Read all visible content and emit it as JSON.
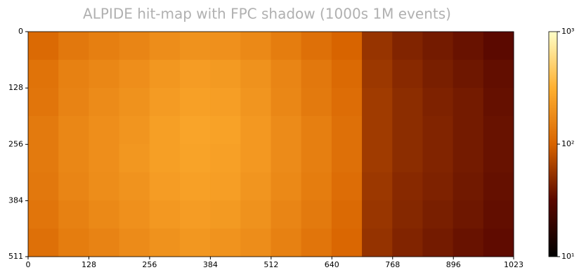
{
  "chart_data": {
    "type": "heatmap",
    "title": "ALPIDE hit-map with FPC shadow (1000s 1M events)",
    "xlim": [
      0,
      1023
    ],
    "xticks": [
      0,
      128,
      256,
      384,
      512,
      640,
      768,
      896,
      1023
    ],
    "ylim": [
      0,
      511
    ],
    "yticks": [
      0,
      128,
      256,
      384,
      511
    ],
    "clim": [
      10,
      1000
    ],
    "color_log_scale": true,
    "colorbar_ticks": [
      {
        "value": 1000,
        "label": "10³"
      },
      {
        "value": 100,
        "label": "10²"
      },
      {
        "value": 10,
        "label": "10¹"
      }
    ],
    "colormap": [
      "#000000",
      "#5a0800",
      "#d86400",
      "#ffb030",
      "#ffffc8"
    ],
    "z": [
      [
        110,
        135,
        150,
        165,
        185,
        200,
        195,
        175,
        145,
        120,
        100,
        55,
        45,
        40,
        36,
        32
      ],
      [
        125,
        155,
        170,
        190,
        215,
        235,
        225,
        200,
        165,
        135,
        110,
        58,
        48,
        42,
        38,
        34
      ],
      [
        130,
        160,
        180,
        200,
        230,
        250,
        240,
        210,
        170,
        140,
        115,
        60,
        50,
        44,
        40,
        35
      ],
      [
        140,
        170,
        190,
        210,
        245,
        265,
        255,
        220,
        180,
        150,
        120,
        60,
        50,
        45,
        40,
        36
      ],
      [
        140,
        170,
        190,
        215,
        245,
        260,
        250,
        220,
        180,
        150,
        120,
        60,
        50,
        45,
        40,
        36
      ],
      [
        135,
        165,
        185,
        205,
        235,
        250,
        240,
        210,
        175,
        145,
        115,
        58,
        48,
        44,
        39,
        35
      ],
      [
        130,
        155,
        175,
        195,
        220,
        235,
        225,
        200,
        165,
        140,
        110,
        56,
        47,
        42,
        38,
        34
      ],
      [
        120,
        145,
        160,
        180,
        200,
        215,
        205,
        185,
        155,
        130,
        105,
        54,
        45,
        40,
        36,
        33
      ]
    ]
  }
}
